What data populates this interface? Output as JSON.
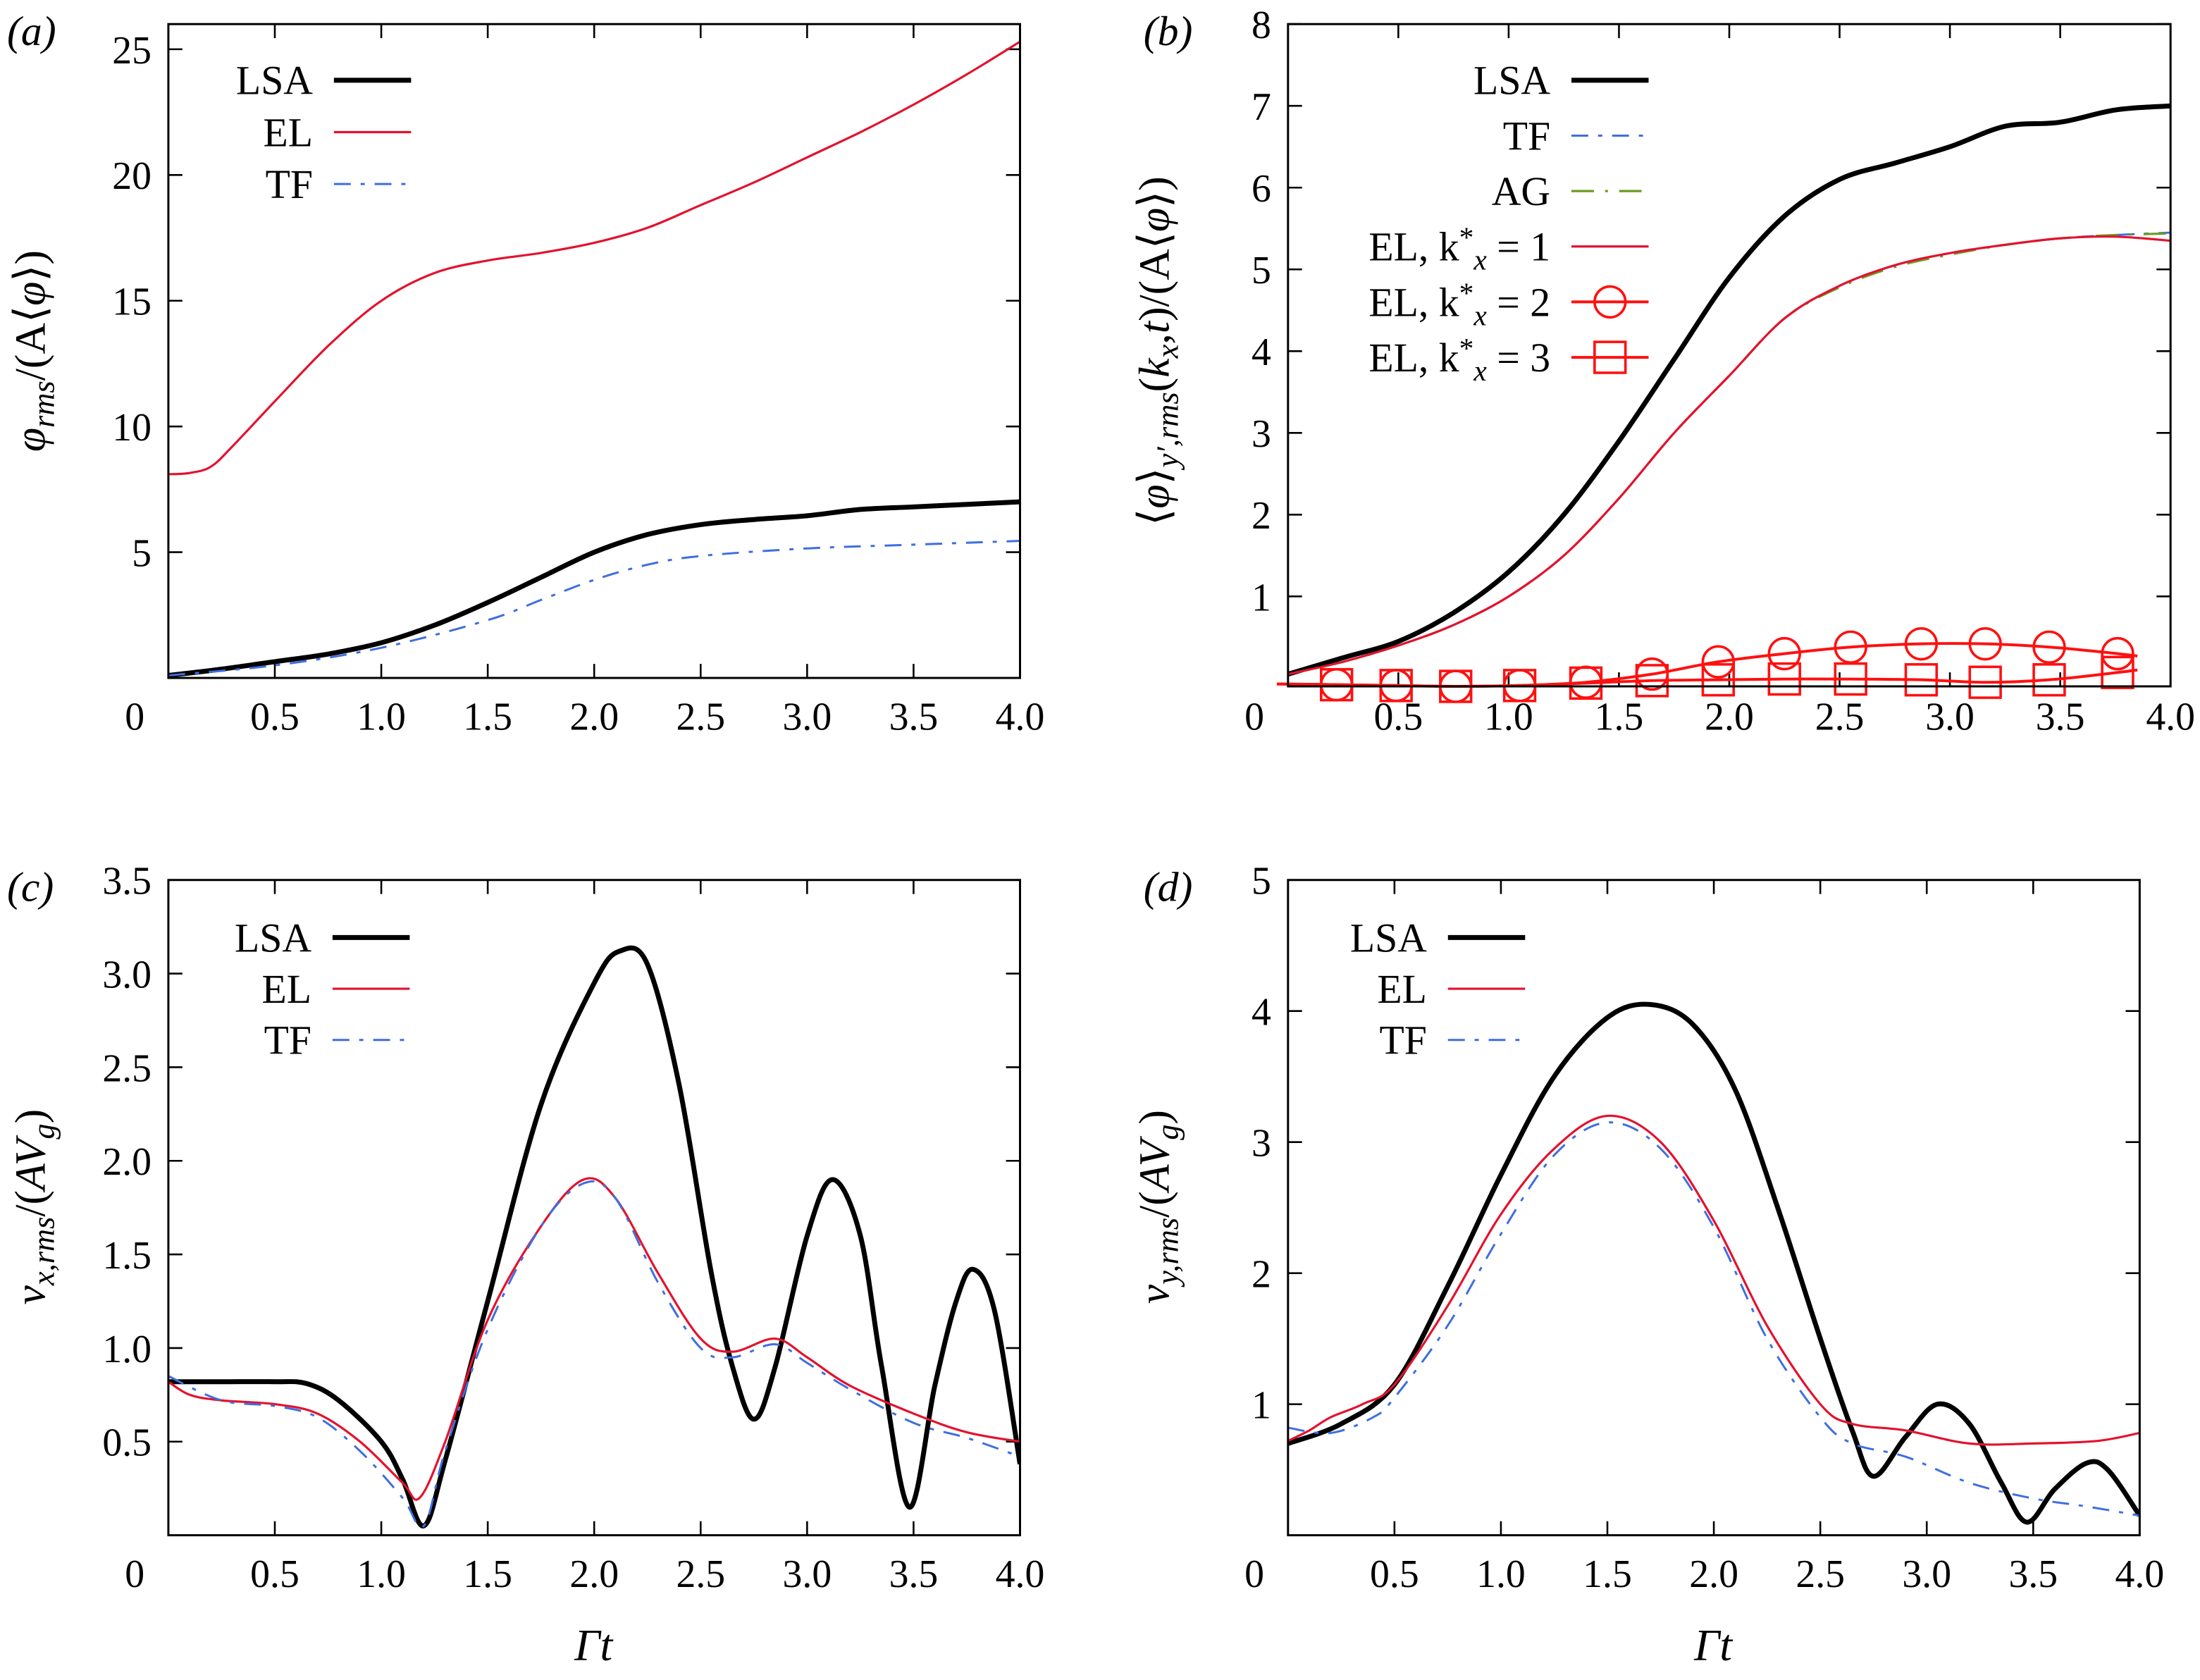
{
  "colors": {
    "LSA": "#000000",
    "EL": "#e3122e",
    "TF": "#3e6ee0",
    "AG": "#6c9a22",
    "ELmark": "#ff1010"
  },
  "chart_data": [
    {
      "panel": "(a)",
      "type": "line",
      "xlim": [
        0,
        4
      ],
      "ylim": [
        0,
        26
      ],
      "xticks": [
        "0",
        "0.5",
        "1.0",
        "1.5",
        "2.0",
        "2.5",
        "3.0",
        "3.5",
        "4.0"
      ],
      "yticks": [
        5,
        10,
        15,
        20,
        25
      ],
      "ylabel": [
        {
          "t": "φ",
          "i": true
        },
        {
          "t": "rms",
          "sub": true,
          "i": true
        },
        {
          "t": "/(A⟨"
        },
        {
          "t": "φ",
          "i": true
        },
        {
          "t": "⟩)"
        }
      ],
      "xlabel": [],
      "legend": "top-left",
      "series": [
        {
          "name": [
            {
              "t": "LSA"
            }
          ],
          "style": "LSA",
          "x": [
            0,
            0.25,
            0.5,
            0.75,
            1,
            1.25,
            1.5,
            1.75,
            2,
            2.25,
            2.5,
            2.75,
            3,
            3.25,
            3.5,
            3.75,
            4
          ],
          "y": [
            0.1,
            0.35,
            0.65,
            0.95,
            1.4,
            2.1,
            3.0,
            4.0,
            5.0,
            5.7,
            6.1,
            6.3,
            6.45,
            6.7,
            6.8,
            6.9,
            7.0
          ]
        },
        {
          "name": [
            {
              "t": "EL"
            }
          ],
          "style": "EL",
          "x": [
            0,
            0.1,
            0.2,
            0.3,
            0.5,
            0.75,
            1,
            1.25,
            1.5,
            1.75,
            2,
            2.25,
            2.5,
            2.75,
            3,
            3.25,
            3.5,
            3.75,
            4
          ],
          "y": [
            8.1,
            8.15,
            8.4,
            9.2,
            11.0,
            13.2,
            15.0,
            16.1,
            16.6,
            16.9,
            17.3,
            17.9,
            18.8,
            19.7,
            20.7,
            21.7,
            22.8,
            24.0,
            25.3
          ]
        },
        {
          "name": [
            {
              "t": "TF"
            }
          ],
          "style": "TF",
          "x": [
            0,
            0.5,
            1,
            1.5,
            1.75,
            2,
            2.25,
            2.5,
            3,
            3.5,
            4
          ],
          "y": [
            0.1,
            0.5,
            1.2,
            2.3,
            3.1,
            3.9,
            4.5,
            4.85,
            5.15,
            5.3,
            5.45
          ]
        }
      ]
    },
    {
      "panel": "(b)",
      "type": "line",
      "xlim": [
        0,
        4
      ],
      "ylim": [
        -0.1,
        8
      ],
      "xticks": [
        "0",
        "0.5",
        "1.0",
        "1.5",
        "2.0",
        "2.5",
        "3.0",
        "3.5",
        "4.0"
      ],
      "yticks": [
        1,
        2,
        3,
        4,
        5,
        6,
        7,
        8
      ],
      "ylabel": [
        {
          "t": "⟨"
        },
        {
          "t": "φ",
          "i": true
        },
        {
          "t": "⟩"
        },
        {
          "t": "y′,rms",
          "sub": true,
          "i": true
        },
        {
          "t": "("
        },
        {
          "t": "k",
          "i": true
        },
        {
          "t": "x",
          "sub": true,
          "i": true
        },
        {
          "t": ",",
          "i": false
        },
        {
          "t": "t",
          "i": true
        },
        {
          "t": ")/(A⟨"
        },
        {
          "t": "φ",
          "i": true
        },
        {
          "t": "⟩)"
        }
      ],
      "xlabel": [],
      "legend": "top-left",
      "series": [
        {
          "name": [
            {
              "t": "LSA"
            }
          ],
          "style": "LSA",
          "x": [
            0,
            0.25,
            0.5,
            0.75,
            1,
            1.25,
            1.5,
            1.75,
            2,
            2.25,
            2.5,
            2.75,
            3,
            3.25,
            3.5,
            3.75,
            4
          ],
          "y": [
            0.05,
            0.25,
            0.45,
            0.8,
            1.3,
            2.0,
            2.9,
            3.9,
            4.9,
            5.65,
            6.1,
            6.3,
            6.5,
            6.75,
            6.8,
            6.95,
            7.0
          ]
        },
        {
          "name": [
            {
              "t": "TF"
            }
          ],
          "style": "TF",
          "x": [
            0,
            0.25,
            0.5,
            0.75,
            1,
            1.25,
            1.5,
            1.75,
            2,
            2.25,
            2.5,
            2.75,
            3,
            3.25,
            3.5,
            3.75,
            4
          ],
          "y": [
            0.05,
            0.2,
            0.4,
            0.65,
            1.0,
            1.5,
            2.2,
            3.0,
            3.7,
            4.4,
            4.8,
            5.05,
            5.2,
            5.3,
            5.38,
            5.42,
            5.45
          ]
        },
        {
          "name": [
            {
              "t": "AG"
            }
          ],
          "style": "AG",
          "x": [
            0,
            0.25,
            0.5,
            0.75,
            1,
            1.25,
            1.5,
            1.75,
            2,
            2.25,
            2.5,
            2.75,
            3,
            3.25,
            3.5,
            3.75,
            4
          ],
          "y": [
            0.05,
            0.2,
            0.4,
            0.65,
            1.0,
            1.5,
            2.2,
            3.0,
            3.7,
            4.4,
            4.78,
            5.03,
            5.18,
            5.3,
            5.38,
            5.42,
            5.44
          ]
        },
        {
          "name": [
            {
              "t": "EL, k"
            },
            {
              "t": "*",
              "sup": true
            },
            {
              "t": "x",
              "sub": true,
              "i": true
            },
            {
              "t": " = 1"
            }
          ],
          "style": "EL",
          "x": [
            0,
            0.25,
            0.5,
            0.75,
            1,
            1.25,
            1.5,
            1.75,
            2,
            2.25,
            2.5,
            2.75,
            3,
            3.25,
            3.5,
            3.75,
            4
          ],
          "y": [
            0.05,
            0.2,
            0.4,
            0.65,
            1.0,
            1.5,
            2.2,
            3.0,
            3.7,
            4.4,
            4.8,
            5.05,
            5.2,
            5.3,
            5.38,
            5.4,
            5.35
          ]
        },
        {
          "name": [
            {
              "t": "EL, k"
            },
            {
              "t": "*",
              "sup": true
            },
            {
              "t": "x",
              "sub": true,
              "i": true
            },
            {
              "t": " = 2"
            }
          ],
          "style": "ELcircle",
          "x": [
            -0.05,
            0.22,
            0.49,
            0.76,
            1.05,
            1.35,
            1.65,
            1.95,
            2.25,
            2.55,
            2.87,
            3.16,
            3.45,
            3.76,
            3.85
          ],
          "y": [
            -0.07,
            -0.08,
            -0.09,
            -0.1,
            -0.09,
            -0.05,
            0.05,
            0.2,
            0.3,
            0.38,
            0.42,
            0.42,
            0.38,
            0.3,
            0.27
          ],
          "markers": [
            0.22,
            0.49,
            0.76,
            1.05,
            1.35,
            1.65,
            1.95,
            2.25,
            2.55,
            2.87,
            3.16,
            3.45,
            3.76
          ]
        },
        {
          "name": [
            {
              "t": "EL, k"
            },
            {
              "t": "*",
              "sup": true
            },
            {
              "t": "x",
              "sub": true,
              "i": true
            },
            {
              "t": " = 3"
            }
          ],
          "style": "ELsquare",
          "x": [
            -0.05,
            0.22,
            0.49,
            0.76,
            1.05,
            1.35,
            1.65,
            1.95,
            2.25,
            2.55,
            2.87,
            3.16,
            3.45,
            3.76,
            3.85
          ],
          "y": [
            -0.07,
            -0.08,
            -0.09,
            -0.1,
            -0.09,
            -0.06,
            -0.03,
            -0.02,
            -0.01,
            -0.01,
            -0.02,
            -0.05,
            -0.02,
            0.07,
            0.1
          ],
          "markers": [
            0.22,
            0.49,
            0.76,
            1.05,
            1.35,
            1.65,
            1.95,
            2.25,
            2.55,
            2.87,
            3.16,
            3.45,
            3.76
          ]
        }
      ]
    },
    {
      "panel": "(c)",
      "type": "line",
      "xlim": [
        0,
        4
      ],
      "ylim": [
        0,
        3.5
      ],
      "xticks": [
        "0",
        "0.5",
        "1.0",
        "1.5",
        "2.0",
        "2.5",
        "3.0",
        "3.5",
        "4.0"
      ],
      "yticks": [
        "0.5",
        "1.0",
        "1.5",
        "2.0",
        "2.5",
        "3.0",
        "3.5"
      ],
      "ylabel": [
        {
          "t": "v",
          "i": true
        },
        {
          "t": "x,rms",
          "sub": true,
          "i": true
        },
        {
          "t": "/("
        },
        {
          "t": "AV",
          "i": true
        },
        {
          "t": "g",
          "sub": true,
          "i": true
        },
        {
          "t": ")"
        }
      ],
      "xlabel": [
        {
          "t": "Γt",
          "i": true
        }
      ],
      "legend": "top-left",
      "series": [
        {
          "name": [
            {
              "t": "LSA"
            }
          ],
          "style": "LSA",
          "x": [
            0,
            0.25,
            0.5,
            0.65,
            0.8,
            1.0,
            1.1,
            1.2,
            1.3,
            1.5,
            1.75,
            2.0,
            2.12,
            2.25,
            2.4,
            2.55,
            2.65,
            2.75,
            2.85,
            3.0,
            3.12,
            3.25,
            3.35,
            3.48,
            3.6,
            3.7,
            3.78,
            3.88,
            4.0
          ],
          "y": [
            0.82,
            0.82,
            0.82,
            0.81,
            0.72,
            0.5,
            0.3,
            0.05,
            0.4,
            1.25,
            2.3,
            2.95,
            3.12,
            3.05,
            2.4,
            1.4,
            0.9,
            0.62,
            0.9,
            1.6,
            1.9,
            1.6,
            0.9,
            0.15,
            0.8,
            1.25,
            1.42,
            1.2,
            0.38
          ]
        },
        {
          "name": [
            {
              "t": "EL"
            }
          ],
          "style": "EL",
          "x": [
            0,
            0.1,
            0.25,
            0.5,
            0.7,
            0.9,
            1.1,
            1.18,
            1.3,
            1.5,
            1.75,
            1.95,
            2.1,
            2.3,
            2.5,
            2.65,
            2.85,
            3.0,
            3.2,
            3.5,
            3.75,
            4.0
          ],
          "y": [
            0.82,
            0.75,
            0.72,
            0.7,
            0.65,
            0.5,
            0.28,
            0.2,
            0.5,
            1.15,
            1.65,
            1.9,
            1.8,
            1.4,
            1.05,
            0.98,
            1.05,
            0.95,
            0.8,
            0.65,
            0.55,
            0.5
          ]
        },
        {
          "name": [
            {
              "t": "TF"
            }
          ],
          "style": "TF",
          "x": [
            0,
            0.25,
            0.5,
            0.7,
            0.9,
            1.1,
            1.2,
            1.3,
            1.5,
            1.75,
            1.95,
            2.1,
            2.3,
            2.5,
            2.65,
            2.85,
            3.0,
            3.2,
            3.5,
            3.75,
            4.0
          ],
          "y": [
            0.85,
            0.72,
            0.69,
            0.63,
            0.45,
            0.2,
            0.05,
            0.45,
            1.1,
            1.65,
            1.88,
            1.8,
            1.35,
            1.0,
            0.95,
            1.02,
            0.92,
            0.78,
            0.6,
            0.52,
            0.42
          ]
        }
      ]
    },
    {
      "panel": "(d)",
      "type": "line",
      "xlim": [
        0,
        4
      ],
      "ylim": [
        0,
        5
      ],
      "xticks": [
        "0",
        "0.5",
        "1.0",
        "1.5",
        "2.0",
        "2.5",
        "3.0",
        "3.5",
        "4.0"
      ],
      "yticks": [
        1,
        2,
        3,
        4,
        5
      ],
      "ylabel": [
        {
          "t": "v",
          "i": true
        },
        {
          "t": "y,rms",
          "sub": true,
          "i": true
        },
        {
          "t": "/("
        },
        {
          "t": "AV",
          "i": true
        },
        {
          "t": "g",
          "sub": true,
          "i": true
        },
        {
          "t": ")"
        }
      ],
      "xlabel": [
        {
          "t": "Γt",
          "i": true
        }
      ],
      "legend": "top-left",
      "series": [
        {
          "name": [
            {
              "t": "LSA"
            }
          ],
          "style": "LSA",
          "x": [
            0,
            0.25,
            0.5,
            0.75,
            1.0,
            1.25,
            1.5,
            1.7,
            1.9,
            2.1,
            2.3,
            2.5,
            2.65,
            2.75,
            2.9,
            3.05,
            3.2,
            3.35,
            3.47,
            3.6,
            3.75,
            3.85,
            4.0
          ],
          "y": [
            0.7,
            0.85,
            1.15,
            1.9,
            2.75,
            3.5,
            3.95,
            4.05,
            3.9,
            3.4,
            2.5,
            1.5,
            0.8,
            0.45,
            0.75,
            1.0,
            0.85,
            0.4,
            0.1,
            0.35,
            0.55,
            0.5,
            0.15
          ]
        },
        {
          "name": [
            {
              "t": "EL"
            }
          ],
          "style": "EL",
          "x": [
            0,
            0.1,
            0.2,
            0.35,
            0.5,
            0.75,
            1.0,
            1.25,
            1.5,
            1.75,
            2.0,
            2.25,
            2.5,
            2.65,
            2.9,
            3.2,
            3.5,
            3.8,
            4.0
          ],
          "y": [
            0.72,
            0.8,
            0.9,
            1.0,
            1.15,
            1.75,
            2.45,
            2.95,
            3.2,
            3.0,
            2.4,
            1.6,
            1.0,
            0.85,
            0.8,
            0.7,
            0.7,
            0.72,
            0.78
          ]
        },
        {
          "name": [
            {
              "t": "TF"
            }
          ],
          "style": "TF",
          "x": [
            0,
            0.2,
            0.4,
            0.5,
            0.75,
            1.0,
            1.25,
            1.5,
            1.75,
            2.0,
            2.25,
            2.5,
            2.65,
            2.9,
            3.2,
            3.5,
            3.75,
            4.0
          ],
          "y": [
            0.82,
            0.78,
            0.9,
            1.05,
            1.6,
            2.3,
            2.9,
            3.15,
            2.95,
            2.35,
            1.5,
            0.9,
            0.7,
            0.6,
            0.4,
            0.28,
            0.22,
            0.15
          ]
        }
      ]
    }
  ]
}
